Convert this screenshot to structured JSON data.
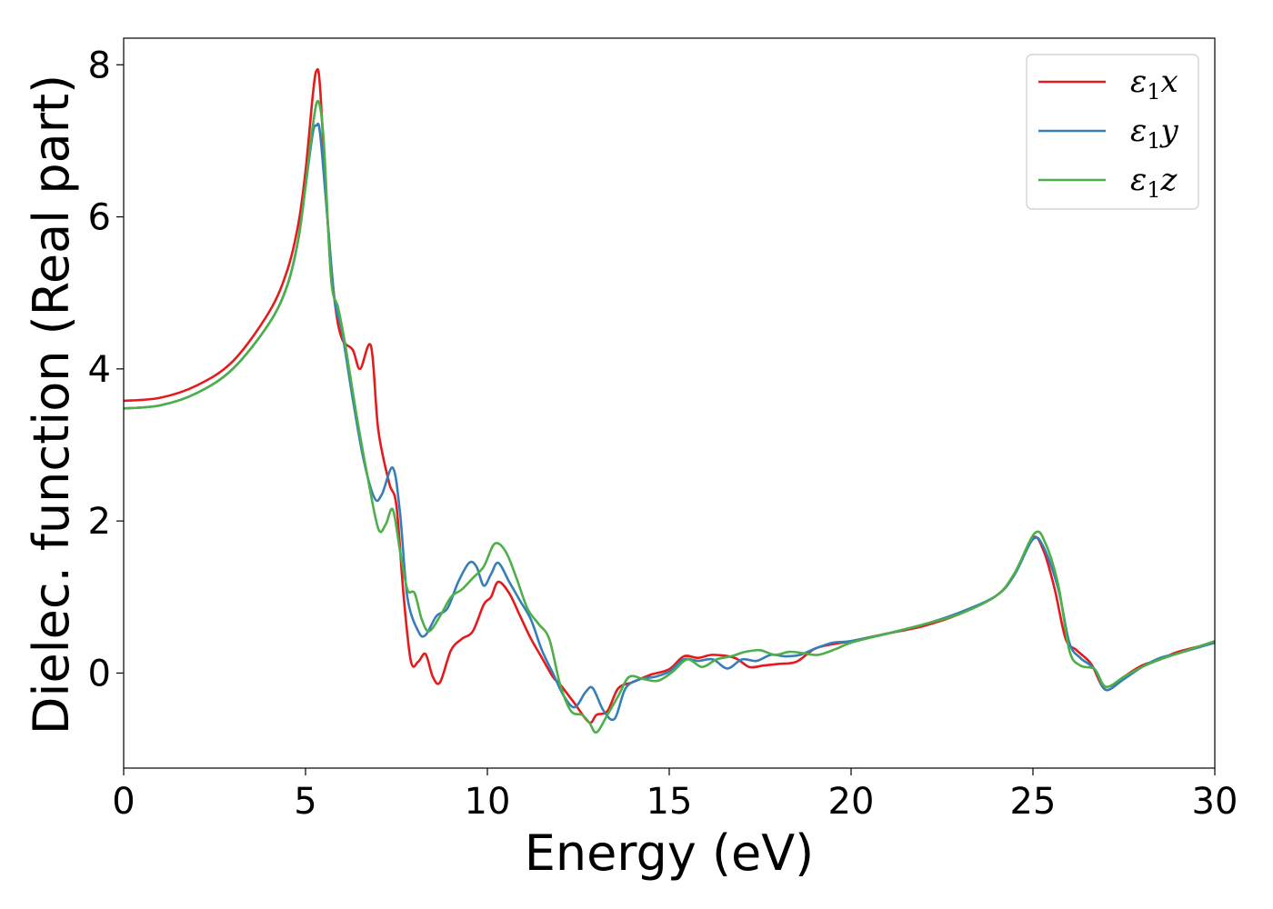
{
  "chart_data": {
    "type": "line",
    "title": "",
    "xlabel": "Energy (eV)",
    "ylabel": "Dielec. function (Real part)",
    "xlim": [
      0,
      30
    ],
    "ylim": [
      -1.25,
      8.35
    ],
    "xticks": [
      0,
      5,
      10,
      15,
      20,
      25,
      30
    ],
    "yticks": [
      0,
      2,
      4,
      6,
      8
    ],
    "grid": false,
    "legend_position": "top-right",
    "series": [
      {
        "name": "ε1x",
        "legend_base": "ε",
        "legend_sub": "1",
        "legend_suffix": "x",
        "color": "#e41a1c",
        "points": [
          [
            0,
            3.58
          ],
          [
            1,
            3.62
          ],
          [
            2,
            3.78
          ],
          [
            3,
            4.1
          ],
          [
            4,
            4.75
          ],
          [
            4.5,
            5.3
          ],
          [
            4.8,
            5.9
          ],
          [
            5.0,
            6.6
          ],
          [
            5.2,
            7.6
          ],
          [
            5.3,
            7.92
          ],
          [
            5.4,
            7.7
          ],
          [
            5.6,
            6.0
          ],
          [
            5.8,
            4.9
          ],
          [
            6.0,
            4.4
          ],
          [
            6.3,
            4.25
          ],
          [
            6.5,
            4.0
          ],
          [
            6.8,
            4.3
          ],
          [
            7.0,
            3.2
          ],
          [
            7.3,
            2.5
          ],
          [
            7.5,
            2.2
          ],
          [
            7.7,
            1.0
          ],
          [
            7.9,
            0.15
          ],
          [
            8.1,
            0.15
          ],
          [
            8.3,
            0.25
          ],
          [
            8.5,
            -0.05
          ],
          [
            8.7,
            -0.12
          ],
          [
            9.0,
            0.3
          ],
          [
            9.3,
            0.45
          ],
          [
            9.6,
            0.55
          ],
          [
            9.9,
            0.9
          ],
          [
            10.1,
            1.0
          ],
          [
            10.3,
            1.2
          ],
          [
            10.6,
            1.05
          ],
          [
            10.9,
            0.75
          ],
          [
            11.2,
            0.45
          ],
          [
            11.5,
            0.2
          ],
          [
            11.8,
            -0.05
          ],
          [
            12.0,
            -0.15
          ],
          [
            12.4,
            -0.4
          ],
          [
            12.8,
            -0.65
          ],
          [
            13.0,
            -0.55
          ],
          [
            13.3,
            -0.5
          ],
          [
            13.6,
            -0.2
          ],
          [
            14.0,
            -0.12
          ],
          [
            14.5,
            -0.02
          ],
          [
            15.0,
            0.05
          ],
          [
            15.4,
            0.22
          ],
          [
            15.8,
            0.2
          ],
          [
            16.2,
            0.24
          ],
          [
            16.8,
            0.2
          ],
          [
            17.2,
            0.08
          ],
          [
            17.6,
            0.1
          ],
          [
            18.0,
            0.12
          ],
          [
            18.5,
            0.15
          ],
          [
            19.0,
            0.32
          ],
          [
            19.5,
            0.38
          ],
          [
            20.0,
            0.42
          ],
          [
            21.0,
            0.52
          ],
          [
            22.0,
            0.62
          ],
          [
            23.0,
            0.78
          ],
          [
            24.0,
            1.02
          ],
          [
            24.5,
            1.3
          ],
          [
            25.0,
            1.78
          ],
          [
            25.3,
            1.6
          ],
          [
            25.6,
            1.1
          ],
          [
            25.9,
            0.45
          ],
          [
            26.2,
            0.3
          ],
          [
            26.6,
            0.12
          ],
          [
            27.0,
            -0.22
          ],
          [
            27.5,
            -0.05
          ],
          [
            28.0,
            0.1
          ],
          [
            28.5,
            0.18
          ],
          [
            29.0,
            0.28
          ],
          [
            30.0,
            0.4
          ]
        ]
      },
      {
        "name": "ε1y",
        "legend_base": "ε",
        "legend_sub": "1",
        "legend_suffix": "y",
        "color": "#377eb8",
        "points": [
          [
            0,
            3.48
          ],
          [
            1,
            3.52
          ],
          [
            2,
            3.68
          ],
          [
            3,
            4.0
          ],
          [
            4,
            4.6
          ],
          [
            4.5,
            5.1
          ],
          [
            4.8,
            5.7
          ],
          [
            5.0,
            6.4
          ],
          [
            5.2,
            7.1
          ],
          [
            5.3,
            7.2
          ],
          [
            5.4,
            7.1
          ],
          [
            5.6,
            6.0
          ],
          [
            5.8,
            4.9
          ],
          [
            6.0,
            4.5
          ],
          [
            6.3,
            3.6
          ],
          [
            6.6,
            2.8
          ],
          [
            6.9,
            2.3
          ],
          [
            7.1,
            2.35
          ],
          [
            7.4,
            2.7
          ],
          [
            7.6,
            2.1
          ],
          [
            7.8,
            1.0
          ],
          [
            8.1,
            0.55
          ],
          [
            8.3,
            0.5
          ],
          [
            8.6,
            0.75
          ],
          [
            8.9,
            0.85
          ],
          [
            9.2,
            1.2
          ],
          [
            9.5,
            1.45
          ],
          [
            9.7,
            1.4
          ],
          [
            9.9,
            1.15
          ],
          [
            10.1,
            1.3
          ],
          [
            10.3,
            1.45
          ],
          [
            10.6,
            1.2
          ],
          [
            10.9,
            0.95
          ],
          [
            11.2,
            0.7
          ],
          [
            11.5,
            0.3
          ],
          [
            11.8,
            0.0
          ],
          [
            12.1,
            -0.3
          ],
          [
            12.4,
            -0.45
          ],
          [
            12.7,
            -0.25
          ],
          [
            12.9,
            -0.2
          ],
          [
            13.2,
            -0.5
          ],
          [
            13.5,
            -0.6
          ],
          [
            13.8,
            -0.2
          ],
          [
            14.2,
            -0.08
          ],
          [
            14.6,
            -0.05
          ],
          [
            15.0,
            0.02
          ],
          [
            15.4,
            0.18
          ],
          [
            15.8,
            0.16
          ],
          [
            16.2,
            0.18
          ],
          [
            16.6,
            0.06
          ],
          [
            17.0,
            0.18
          ],
          [
            17.4,
            0.16
          ],
          [
            17.8,
            0.24
          ],
          [
            18.2,
            0.22
          ],
          [
            18.6,
            0.24
          ],
          [
            19.0,
            0.32
          ],
          [
            19.5,
            0.4
          ],
          [
            20.0,
            0.42
          ],
          [
            21.0,
            0.52
          ],
          [
            22.0,
            0.64
          ],
          [
            23.0,
            0.8
          ],
          [
            24.0,
            1.02
          ],
          [
            24.5,
            1.3
          ],
          [
            25.0,
            1.76
          ],
          [
            25.3,
            1.65
          ],
          [
            25.7,
            1.1
          ],
          [
            26.0,
            0.4
          ],
          [
            26.3,
            0.2
          ],
          [
            26.7,
            0.05
          ],
          [
            27.0,
            -0.22
          ],
          [
            27.5,
            -0.08
          ],
          [
            28.0,
            0.08
          ],
          [
            28.5,
            0.2
          ],
          [
            29.0,
            0.26
          ],
          [
            30.0,
            0.4
          ]
        ]
      },
      {
        "name": "ε1z",
        "legend_base": "ε",
        "legend_sub": "1",
        "legend_suffix": "z",
        "color": "#4daf4a",
        "points": [
          [
            0,
            3.48
          ],
          [
            1,
            3.52
          ],
          [
            2,
            3.68
          ],
          [
            3,
            4.0
          ],
          [
            4,
            4.6
          ],
          [
            4.5,
            5.1
          ],
          [
            4.8,
            5.7
          ],
          [
            5.0,
            6.4
          ],
          [
            5.2,
            7.2
          ],
          [
            5.35,
            7.52
          ],
          [
            5.5,
            7.0
          ],
          [
            5.7,
            5.2
          ],
          [
            5.9,
            4.8
          ],
          [
            6.1,
            4.3
          ],
          [
            6.4,
            3.4
          ],
          [
            6.7,
            2.6
          ],
          [
            7.0,
            1.9
          ],
          [
            7.2,
            1.95
          ],
          [
            7.4,
            2.15
          ],
          [
            7.6,
            1.6
          ],
          [
            7.8,
            1.1
          ],
          [
            8.0,
            1.05
          ],
          [
            8.2,
            0.7
          ],
          [
            8.4,
            0.55
          ],
          [
            8.7,
            0.75
          ],
          [
            9.0,
            1.0
          ],
          [
            9.3,
            1.1
          ],
          [
            9.6,
            1.25
          ],
          [
            9.9,
            1.4
          ],
          [
            10.2,
            1.7
          ],
          [
            10.5,
            1.6
          ],
          [
            10.8,
            1.25
          ],
          [
            11.1,
            0.85
          ],
          [
            11.4,
            0.65
          ],
          [
            11.7,
            0.45
          ],
          [
            12.0,
            -0.15
          ],
          [
            12.3,
            -0.5
          ],
          [
            12.6,
            -0.55
          ],
          [
            12.8,
            -0.65
          ],
          [
            13.0,
            -0.78
          ],
          [
            13.3,
            -0.55
          ],
          [
            13.6,
            -0.3
          ],
          [
            13.9,
            -0.05
          ],
          [
            14.3,
            -0.08
          ],
          [
            14.7,
            -0.1
          ],
          [
            15.1,
            0.02
          ],
          [
            15.5,
            0.18
          ],
          [
            15.9,
            0.08
          ],
          [
            16.3,
            0.18
          ],
          [
            16.7,
            0.22
          ],
          [
            17.1,
            0.28
          ],
          [
            17.5,
            0.3
          ],
          [
            17.9,
            0.24
          ],
          [
            18.3,
            0.28
          ],
          [
            18.7,
            0.26
          ],
          [
            19.1,
            0.24
          ],
          [
            19.6,
            0.32
          ],
          [
            20.0,
            0.4
          ],
          [
            21.0,
            0.52
          ],
          [
            22.0,
            0.64
          ],
          [
            23.0,
            0.78
          ],
          [
            24.0,
            1.02
          ],
          [
            24.5,
            1.32
          ],
          [
            25.05,
            1.84
          ],
          [
            25.35,
            1.7
          ],
          [
            25.7,
            1.15
          ],
          [
            26.0,
            0.3
          ],
          [
            26.3,
            0.1
          ],
          [
            26.7,
            0.05
          ],
          [
            27.0,
            -0.18
          ],
          [
            27.5,
            -0.05
          ],
          [
            28.0,
            0.08
          ],
          [
            28.5,
            0.18
          ],
          [
            29.0,
            0.26
          ],
          [
            30.0,
            0.42
          ]
        ]
      }
    ]
  }
}
